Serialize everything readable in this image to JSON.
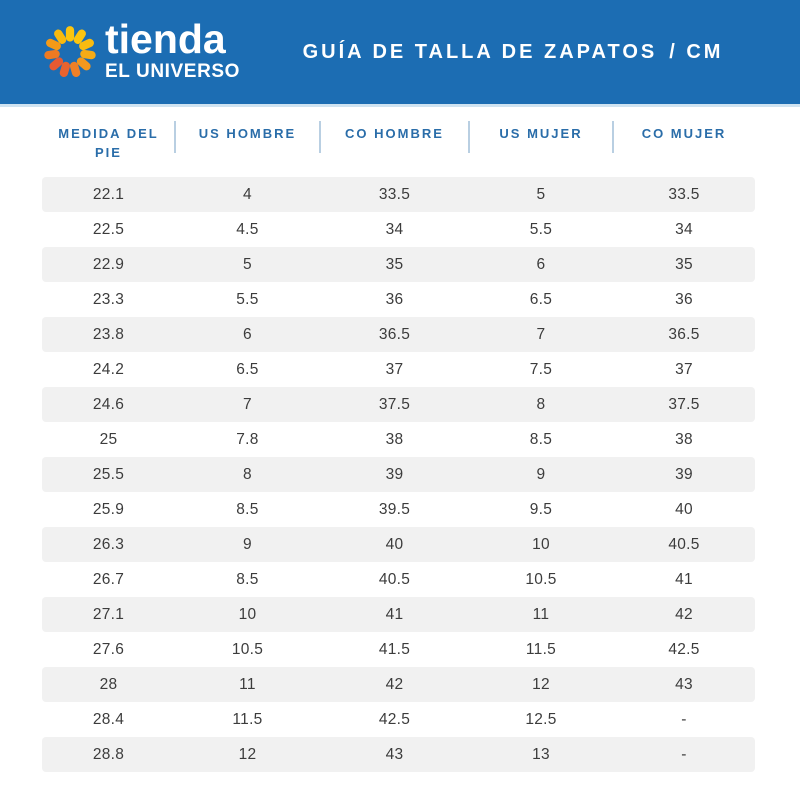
{
  "brand": {
    "name": "tienda",
    "subtitle": "EL UNIVERSO",
    "icon": "sun-icon",
    "icon_colors": [
      "#fcc50f",
      "#fcc50f",
      "#f9bb10",
      "#f6ab16",
      "#f3981e",
      "#ef8026",
      "#e9632f",
      "#e75a31",
      "#ee7a22",
      "#f49a17",
      "#f9ba0e"
    ]
  },
  "header": {
    "title": "GUÍA DE TALLA DE ZAPATOS",
    "unit": "/ CM"
  },
  "table": {
    "columns": [
      "MEDIDA DEL PIE",
      "US HOMBRE",
      "CO HOMBRE",
      "US MUJER",
      "CO MUJER"
    ],
    "rows": [
      [
        "22.1",
        "4",
        "33.5",
        "5",
        "33.5"
      ],
      [
        "22.5",
        "4.5",
        "34",
        "5.5",
        "34"
      ],
      [
        "22.9",
        "5",
        "35",
        "6",
        "35"
      ],
      [
        "23.3",
        "5.5",
        "36",
        "6.5",
        "36"
      ],
      [
        "23.8",
        "6",
        "36.5",
        "7",
        "36.5"
      ],
      [
        "24.2",
        "6.5",
        "37",
        "7.5",
        "37"
      ],
      [
        "24.6",
        "7",
        "37.5",
        "8",
        "37.5"
      ],
      [
        "25",
        "7.8",
        "38",
        "8.5",
        "38"
      ],
      [
        "25.5",
        "8",
        "39",
        "9",
        "39"
      ],
      [
        "25.9",
        "8.5",
        "39.5",
        "9.5",
        "40"
      ],
      [
        "26.3",
        "9",
        "40",
        "10",
        "40.5"
      ],
      [
        "26.7",
        "8.5",
        "40.5",
        "10.5",
        "41"
      ],
      [
        "27.1",
        "10",
        "41",
        "11",
        "42"
      ],
      [
        "27.6",
        "10.5",
        "41.5",
        "11.5",
        "42.5"
      ],
      [
        "28",
        "11",
        "42",
        "12",
        "43"
      ],
      [
        "28.4",
        "11.5",
        "42.5",
        "12.5",
        "-"
      ],
      [
        "28.8",
        "12",
        "43",
        "13",
        "-"
      ]
    ]
  },
  "colors": {
    "band_blue": "#1c6db3",
    "band_edge": "#cfe3f1",
    "header_text": "#2a6da9",
    "divider": "#b9cfe2",
    "row_stripe": "#f1f1f1",
    "cell_text": "#3c3c3c",
    "white": "#ffffff"
  }
}
